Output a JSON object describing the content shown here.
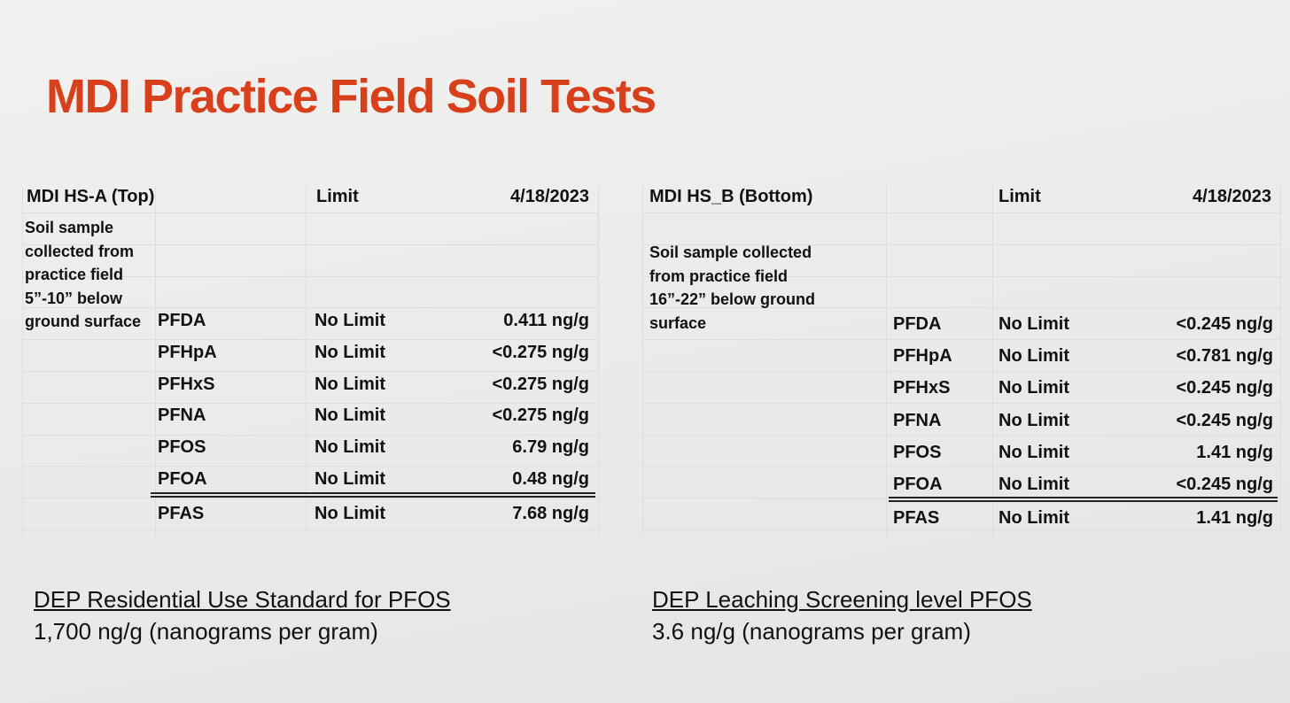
{
  "title": "MDI Practice Field Soil Tests",
  "tables": [
    {
      "header": [
        "MDI HS-A (Top)",
        "Limit",
        "4/18/2023"
      ],
      "description": [
        "Soil sample",
        "collected from",
        "practice field",
        "5”-10” below",
        "ground surface"
      ],
      "rows": [
        [
          "PFDA",
          "No Limit",
          "0.411 ng/g"
        ],
        [
          "PFHpA",
          "No Limit",
          "<0.275 ng/g"
        ],
        [
          "PFHxS",
          "No Limit",
          "<0.275 ng/g"
        ],
        [
          "PFNA",
          "No Limit",
          "<0.275 ng/g"
        ],
        [
          "PFOS",
          "No Limit",
          "6.79 ng/g"
        ],
        [
          "PFOA",
          "No Limit",
          "0.48 ng/g"
        ]
      ],
      "total": [
        "PFAS",
        "No Limit",
        "7.68 ng/g"
      ]
    },
    {
      "header": [
        "MDI HS_B (Bottom)",
        "Limit",
        "4/18/2023"
      ],
      "description": [
        "Soil sample collected",
        "from practice field",
        "16”-22” below ground",
        "surface"
      ],
      "rows": [
        [
          "PFDA",
          "No Limit",
          "<0.245 ng/g"
        ],
        [
          "PFHpA",
          "No Limit",
          "<0.781 ng/g"
        ],
        [
          "PFHxS",
          "No Limit",
          "<0.245 ng/g"
        ],
        [
          "PFNA",
          "No Limit",
          "<0.245 ng/g"
        ],
        [
          "PFOS",
          "No Limit",
          "1.41 ng/g"
        ],
        [
          "PFOA",
          "No Limit",
          "<0.245 ng/g"
        ]
      ],
      "total": [
        "PFAS",
        "No Limit",
        "1.41 ng/g"
      ]
    }
  ],
  "notes": [
    {
      "heading": "DEP Residential Use Standard for PFOS",
      "text": "1,700 ng/g (nanograms per gram)"
    },
    {
      "heading": "DEP Leaching Screening level PFOS",
      "text": "3.6 ng/g (nanograms per gram)"
    }
  ]
}
